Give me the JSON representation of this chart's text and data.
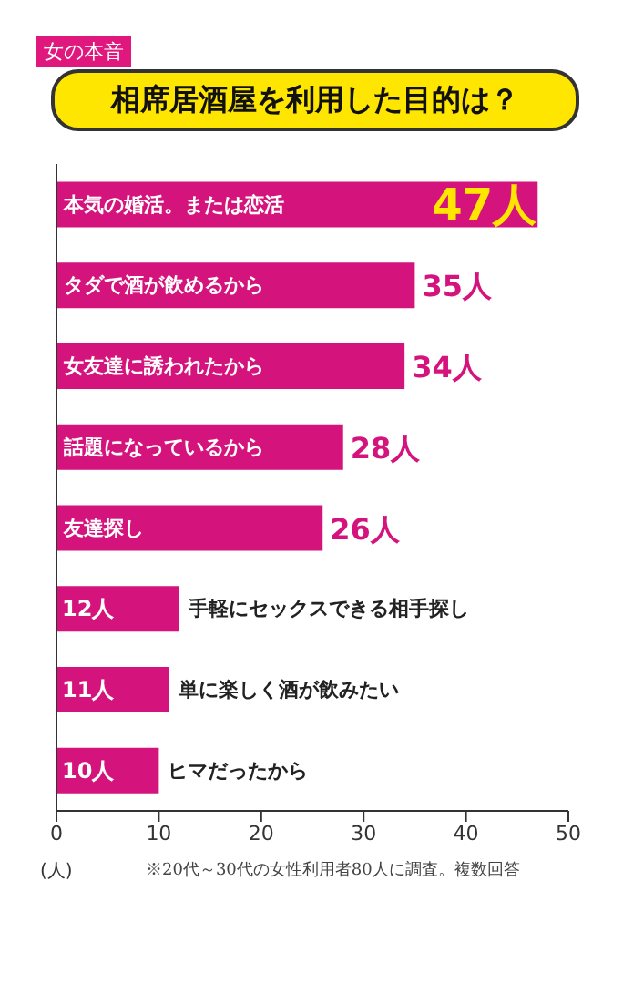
{
  "chart_data": {
    "type": "bar",
    "orientation": "horizontal",
    "subtitle": "女の本音",
    "title": "相席居酒屋を利用した目的は？",
    "xlabel": "(人)",
    "categories": [
      "本気の婚活。または恋活",
      "タダで酒が飲めるから",
      "女友達に誘われたから",
      "話題になっているから",
      "友達探し",
      "手軽にセックスできる相手探し",
      "単に楽しく酒が飲みたい",
      "ヒマだったから"
    ],
    "values": [
      47,
      35,
      34,
      28,
      26,
      12,
      11,
      10
    ],
    "value_labels": [
      "47人",
      "35人",
      "34人",
      "28人",
      "26人",
      "12人",
      "11人",
      "10人"
    ],
    "color": "#d4147c",
    "xlim": [
      0,
      50
    ],
    "xticks": [
      0,
      10,
      20,
      30,
      40,
      50
    ],
    "annotations": [
      "※20代～30代の女性利用者80人に調査。複数回答"
    ]
  }
}
